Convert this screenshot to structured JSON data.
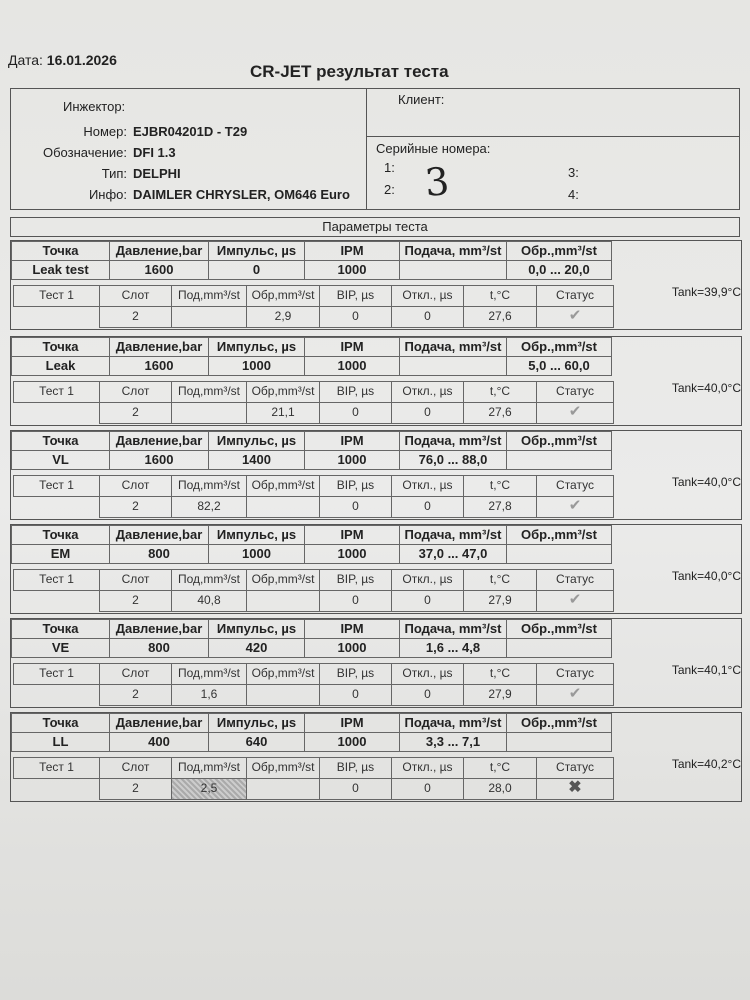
{
  "header": {
    "date_label": "Дата:",
    "date": "16.01.2026",
    "title": "CR-JET результат теста"
  },
  "injector": {
    "label": "Инжектор:",
    "number_label": "Номер:",
    "number": "EJBR04201D - T29",
    "designation_label": "Обозначение:",
    "designation": "DFI 1.3",
    "type_label": "Тип:",
    "type": "DELPHI",
    "info_label": "Инфо:",
    "info": "DAIMLER CHRYSLER, OM646 Euro"
  },
  "client": {
    "label": "Клиент:",
    "serials_label": "Серийные номера:",
    "serial_slots": [
      "1:",
      "2:",
      "3:",
      "4:"
    ],
    "handwritten": "3"
  },
  "params_title": "Параметры теста",
  "point_headers": [
    "Точка",
    "Давление,bar",
    "Импульс, µs",
    "IPM",
    "Подача, mm³/st",
    "Обр.,mm³/st"
  ],
  "result_headers": [
    "Тест 1",
    "Слот",
    "Под,mm³/st",
    "Обр,mm³/st",
    "BIP, µs",
    "Откл., µs",
    "t,°C",
    "Статус"
  ],
  "status_icons": {
    "pass": "checkmark-icon",
    "fail": "cross-icon"
  },
  "tests": [
    {
      "point": "Leak test",
      "pressure": "1600",
      "pulse": "0",
      "ipm": "1000",
      "delivery": "",
      "return": "0,0 ... 20,0",
      "slot": "2",
      "r_delivery": "",
      "r_return": "2,9",
      "bip": "0",
      "dev": "0",
      "temp": "27,6",
      "status": "pass",
      "tank": "Tank=39,9°C"
    },
    {
      "point": "Leak",
      "pressure": "1600",
      "pulse": "1000",
      "ipm": "1000",
      "delivery": "",
      "return": "5,0 ... 60,0",
      "slot": "2",
      "r_delivery": "",
      "r_return": "21,1",
      "bip": "0",
      "dev": "0",
      "temp": "27,6",
      "status": "pass",
      "tank": "Tank=40,0°C"
    },
    {
      "point": "VL",
      "pressure": "1600",
      "pulse": "1400",
      "ipm": "1000",
      "delivery": "76,0 ... 88,0",
      "return": "",
      "slot": "2",
      "r_delivery": "82,2",
      "r_return": "",
      "bip": "0",
      "dev": "0",
      "temp": "27,8",
      "status": "pass",
      "tank": "Tank=40,0°C"
    },
    {
      "point": "EM",
      "pressure": "800",
      "pulse": "1000",
      "ipm": "1000",
      "delivery": "37,0 ... 47,0",
      "return": "",
      "slot": "2",
      "r_delivery": "40,8",
      "r_return": "",
      "bip": "0",
      "dev": "0",
      "temp": "27,9",
      "status": "pass",
      "tank": "Tank=40,0°C"
    },
    {
      "point": "VE",
      "pressure": "800",
      "pulse": "420",
      "ipm": "1000",
      "delivery": "1,6 ... 4,8",
      "return": "",
      "slot": "2",
      "r_delivery": "1,6",
      "r_return": "",
      "bip": "0",
      "dev": "0",
      "temp": "27,9",
      "status": "pass",
      "tank": "Tank=40,1°C"
    },
    {
      "point": "LL",
      "pressure": "400",
      "pulse": "640",
      "ipm": "1000",
      "delivery": "3,3 ... 7,1",
      "return": "",
      "slot": "2",
      "r_delivery": "2,5",
      "r_return": "",
      "bip": "0",
      "dev": "0",
      "temp": "28,0",
      "status": "fail",
      "tank": "Tank=40,2°C"
    }
  ]
}
